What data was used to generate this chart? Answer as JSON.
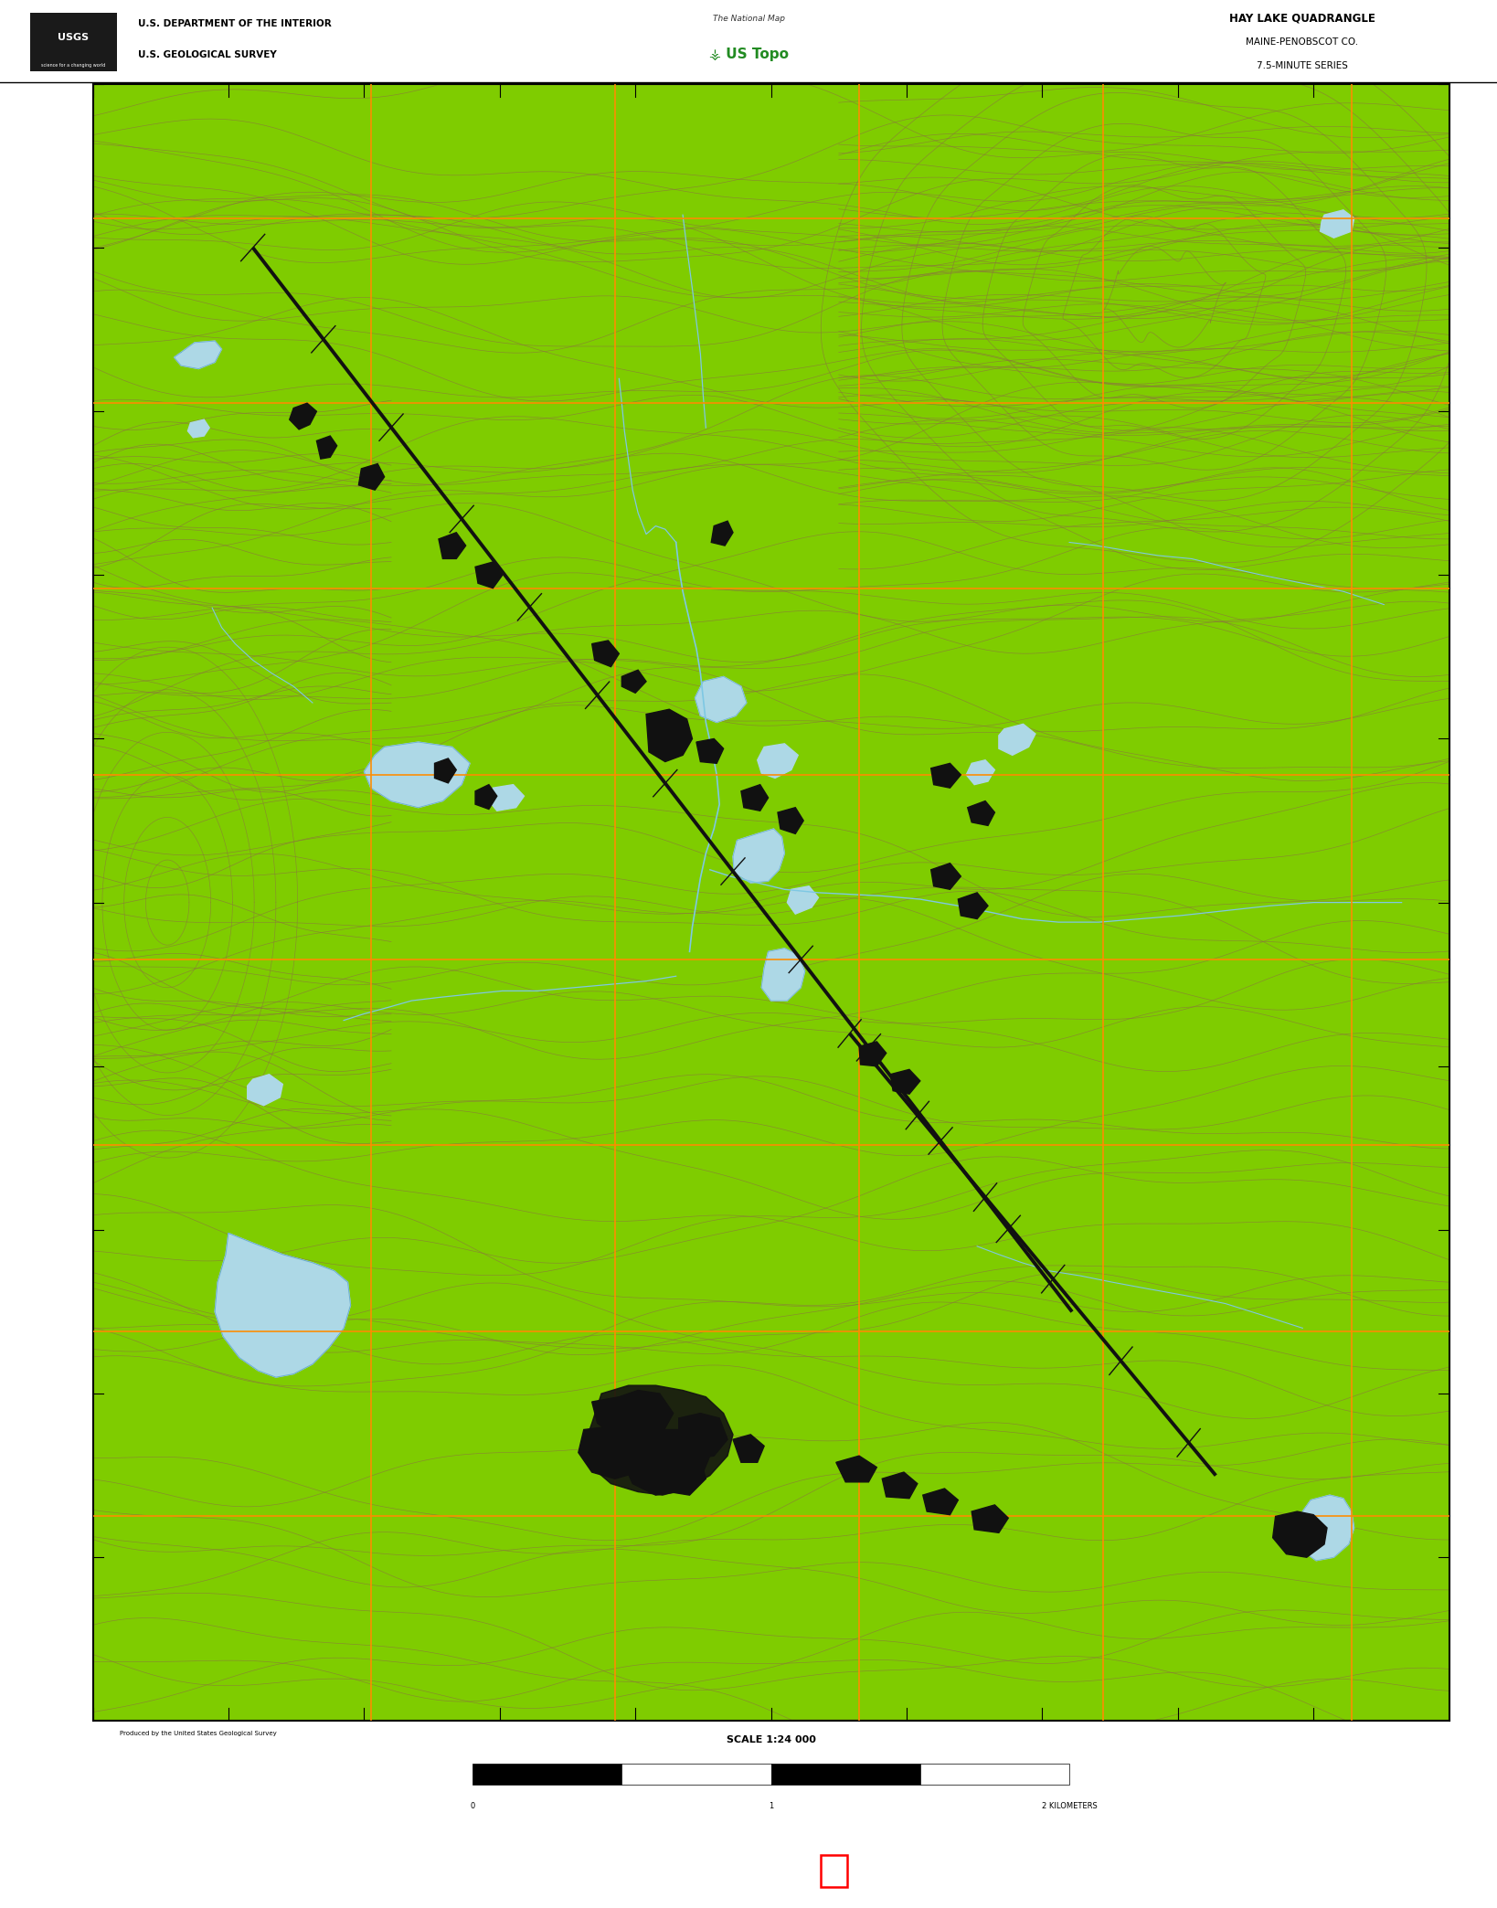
{
  "title": "HAY LAKE QUADRANGLE",
  "subtitle1": "MAINE-PENOBSCOT CO.",
  "subtitle2": "7.5-MINUTE SERIES",
  "header_left_line1": "U.S. DEPARTMENT OF THE INTERIOR",
  "header_left_line2": "U.S. GEOLOGICAL SURVEY",
  "scale_text": "SCALE 1:24 000",
  "map_bg_color": "#7FCC00",
  "contour_color": "#8B7340",
  "grid_color": "#FF8C00",
  "water_color": "#ADD8E6",
  "stream_color": "#7EC8E3",
  "black_feature": "#111111",
  "road_color_primary": "#E05020",
  "road_color_secondary": "#CC3300",
  "header_bg": "#FFFFFF",
  "footer_bg": "#000000",
  "red_rect_color": "#FF0000",
  "fig_width": 16.38,
  "fig_height": 20.88,
  "map_L": 0.062,
  "map_R": 0.968,
  "map_B": 0.098,
  "map_T": 0.956,
  "header_B": 0.956,
  "header_T": 1.0,
  "footer_T": 0.098,
  "footer_B": 0.0
}
